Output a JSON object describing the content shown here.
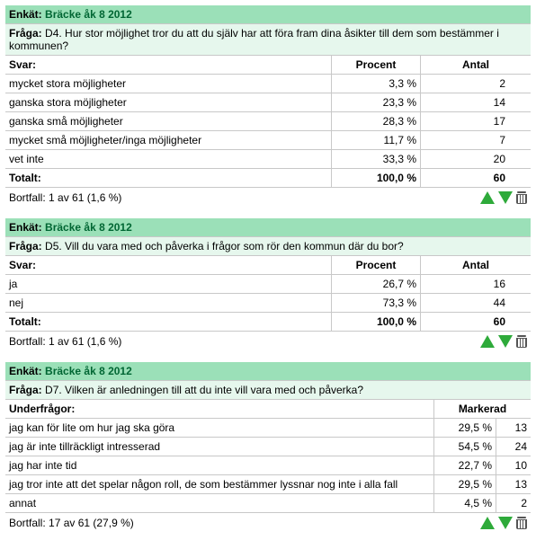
{
  "labels": {
    "enket": "Enkät:",
    "fraga": "Fråga:",
    "svar": "Svar:",
    "underfragor": "Underfrågor:",
    "procent": "Procent",
    "antal": "Antal",
    "markerad": "Markerad",
    "totalt": "Totalt:"
  },
  "survey_name": "Bräcke åk 8 2012",
  "blocks": [
    {
      "type": "svar",
      "question": "D4. Hur stor möjlighet tror du att du själv har att föra fram dina åsikter till dem som bestämmer i kommunen?",
      "rows": [
        {
          "label": "mycket stora möjligheter",
          "pct": "3,3 %",
          "n": "2"
        },
        {
          "label": "ganska stora möjligheter",
          "pct": "23,3 %",
          "n": "14"
        },
        {
          "label": "ganska små möjligheter",
          "pct": "28,3 %",
          "n": "17"
        },
        {
          "label": "mycket små möjligheter/inga möjligheter",
          "pct": "11,7 %",
          "n": "7"
        },
        {
          "label": "vet inte",
          "pct": "33,3 %",
          "n": "20"
        }
      ],
      "total": {
        "pct": "100,0 %",
        "n": "60"
      },
      "bortfall": "Bortfall: 1 av 61 (1,6 %)"
    },
    {
      "type": "svar",
      "question": "D5. Vill du vara med och påverka i frågor som rör den kommun där du bor?",
      "rows": [
        {
          "label": "ja",
          "pct": "26,7 %",
          "n": "16"
        },
        {
          "label": "nej",
          "pct": "73,3 %",
          "n": "44"
        }
      ],
      "total": {
        "pct": "100,0 %",
        "n": "60"
      },
      "bortfall": "Bortfall: 1 av 61 (1,6 %)"
    },
    {
      "type": "under",
      "question": "D7. Vilken är anledningen till att du inte vill vara med och påverka?",
      "rows": [
        {
          "label": "jag kan för lite om hur jag ska göra",
          "pct": "29,5 %",
          "n": "13"
        },
        {
          "label": "jag är inte tillräckligt intresserad",
          "pct": "54,5 %",
          "n": "24"
        },
        {
          "label": "jag har inte tid",
          "pct": "22,7 %",
          "n": "10"
        },
        {
          "label": "jag tror inte att det spelar någon roll, de som bestämmer lyssnar nog inte i alla fall",
          "pct": "29,5 %",
          "n": "13"
        },
        {
          "label": "annat",
          "pct": "4,5 %",
          "n": "2"
        }
      ],
      "bortfall": "Bortfall: 17 av 61 (27,9 %)"
    }
  ]
}
